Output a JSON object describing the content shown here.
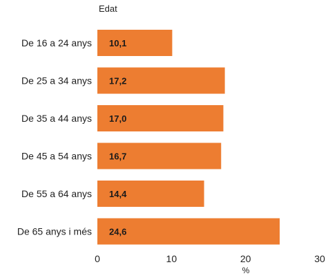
{
  "chart_data": {
    "type": "bar",
    "orientation": "horizontal",
    "category_axis_title": "Edat",
    "xlabel": "%",
    "categories": [
      "De 16 a 24 anys",
      "De 25 a 34 anys",
      "De 35 a 44 anys",
      "De 45 a 54 anys",
      "De 55 a 64 anys",
      "De 65 anys i més"
    ],
    "values": [
      10.1,
      17.2,
      17.0,
      16.7,
      14.4,
      24.6
    ],
    "value_labels": [
      "10,1",
      "17,2",
      "17,0",
      "16,7",
      "14,4",
      "24,6"
    ],
    "xlim": [
      0,
      30
    ],
    "xticks": [
      0,
      10,
      20,
      30
    ],
    "xtick_labels": [
      "0",
      "10",
      "20",
      "30"
    ],
    "grid": false,
    "legend": "none",
    "colors": {
      "bar": "#ED7D31",
      "value_label": "#1a1a1a",
      "text": "#222222"
    }
  }
}
